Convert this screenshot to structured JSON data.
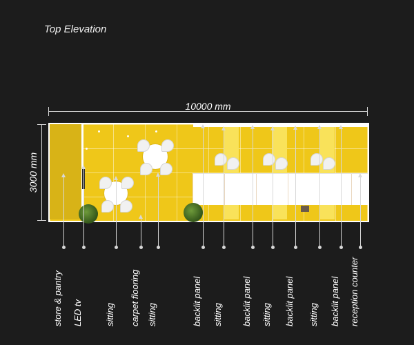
{
  "title": "Top Elevation",
  "dimensions": {
    "width_label": "10000 mm",
    "depth_label": "3000 mm"
  },
  "callouts": [
    {
      "label": "store & pantry"
    },
    {
      "label": "LED tv"
    },
    {
      "label": "sitting"
    },
    {
      "label": "carpet flooring"
    },
    {
      "label": "sitting"
    },
    {
      "label": "backlit panel"
    },
    {
      "label": "sitting"
    },
    {
      "label": "backlit panel"
    },
    {
      "label": "sitting"
    },
    {
      "label": "backlit panel"
    },
    {
      "label": "sitting"
    },
    {
      "label": "backlit panel"
    },
    {
      "label": "reception counter"
    }
  ],
  "colors": {
    "background": "#1c1c1c",
    "carpet": "#efc719",
    "backlit_panel": "#f9e25a",
    "counter": "#ffffff"
  }
}
